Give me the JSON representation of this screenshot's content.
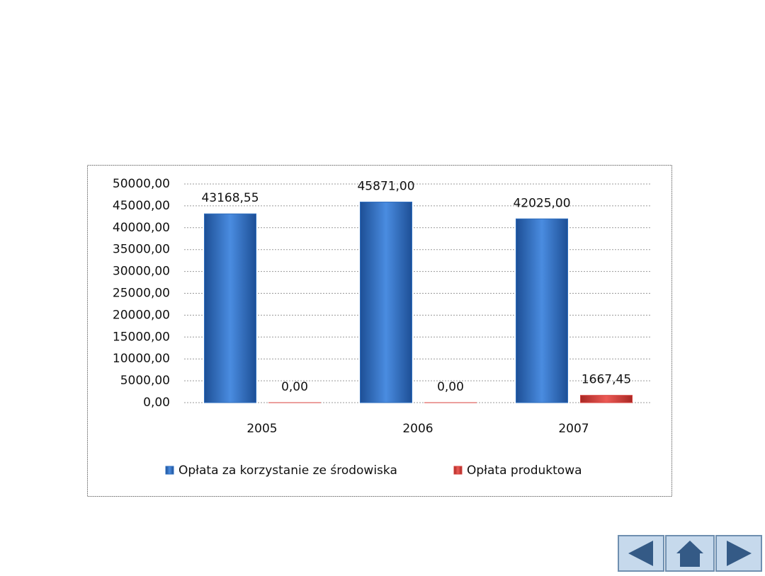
{
  "chart_data": {
    "type": "bar",
    "categories": [
      "2005",
      "2006",
      "2007"
    ],
    "series": [
      {
        "name": "Opłata za korzystanie ze środowiska",
        "color": "#2f6fbf",
        "values": [
          43168.55,
          45871,
          42025
        ],
        "value_labels": [
          "43168,55",
          "45871,00",
          "42025,00"
        ]
      },
      {
        "name": "Opłata produktowa",
        "color": "#d8413c",
        "values": [
          0,
          0,
          1667.45
        ],
        "value_labels": [
          "0,00",
          "0,00",
          "1667,45"
        ]
      }
    ],
    "ylim": [
      0,
      50000
    ],
    "yticks": [
      {
        "value": 0,
        "label": "0,00"
      },
      {
        "value": 5000,
        "label": "5000,00"
      },
      {
        "value": 10000,
        "label": "10000,00"
      },
      {
        "value": 15000,
        "label": "15000,00"
      },
      {
        "value": 20000,
        "label": "20000,00"
      },
      {
        "value": 25000,
        "label": "25000,00"
      },
      {
        "value": 30000,
        "label": "30000,00"
      },
      {
        "value": 35000,
        "label": "35000,00"
      },
      {
        "value": 40000,
        "label": "40000,00"
      },
      {
        "value": 45000,
        "label": "45000,00"
      },
      {
        "value": 50000,
        "label": "50000,00"
      }
    ],
    "grid": true
  }
}
